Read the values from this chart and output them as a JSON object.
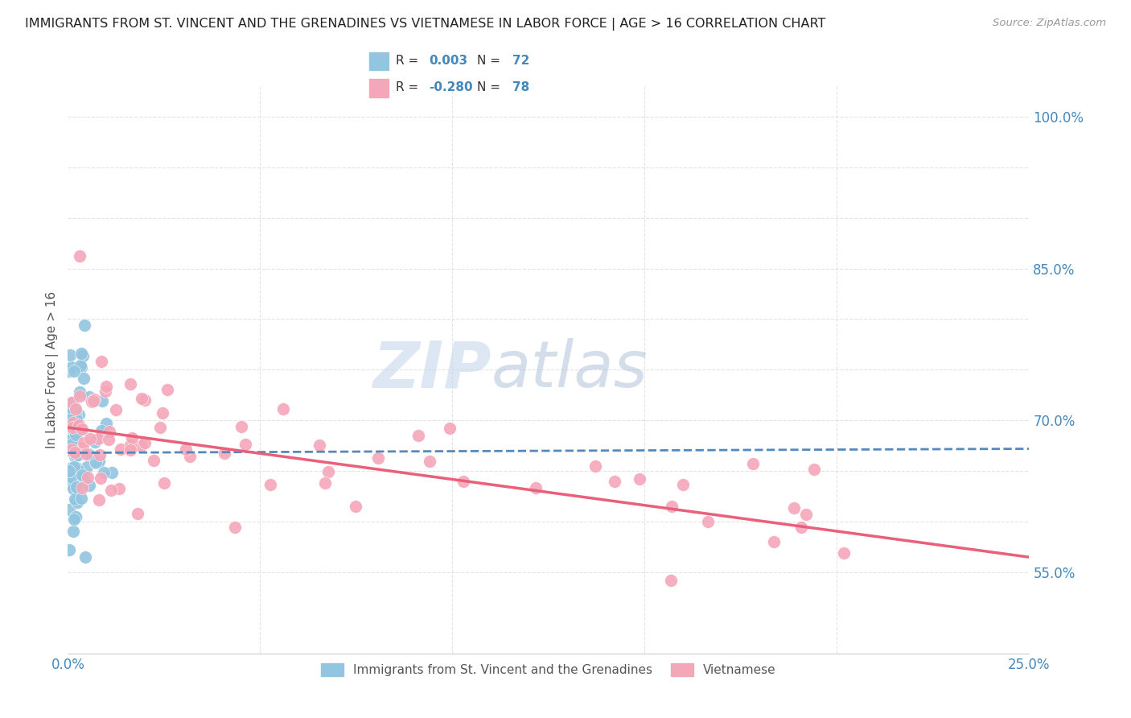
{
  "title": "IMMIGRANTS FROM ST. VINCENT AND THE GRENADINES VS VIETNAMESE IN LABOR FORCE | AGE > 16 CORRELATION CHART",
  "source": "Source: ZipAtlas.com",
  "ylabel": "In Labor Force | Age > 16",
  "xlim": [
    0.0,
    0.25
  ],
  "ylim": [
    0.47,
    1.03
  ],
  "legend1_label": "Immigrants from St. Vincent and the Grenadines",
  "legend2_label": "Vietnamese",
  "R1": 0.003,
  "N1": 72,
  "R2": -0.28,
  "N2": 78,
  "color_blue": "#92C5E0",
  "color_pink": "#F4A7B9",
  "color_blue_line": "#5588BB",
  "color_pink_line": "#E8607A",
  "color_text_blue": "#4488BB",
  "grid_color": "#DDDDDD",
  "background_color": "#FFFFFF",
  "yticks_labeled": [
    0.55,
    0.7,
    0.85,
    1.0
  ],
  "ytick_labels": [
    "55.0%",
    "70.0%",
    "85.0%",
    "100.0%"
  ],
  "blue_trend_y0": 0.668,
  "blue_trend_y1": 0.672,
  "pink_trend_y0": 0.693,
  "pink_trend_y1": 0.565
}
